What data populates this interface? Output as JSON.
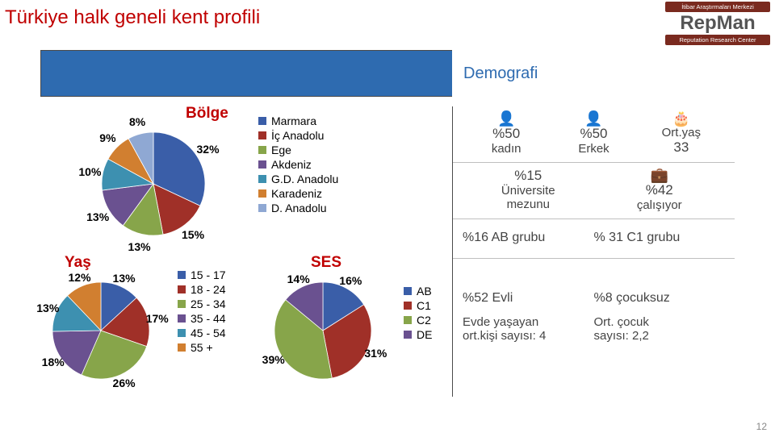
{
  "title": "Türkiye halk geneli kent profili",
  "logo": {
    "top": "İtibar Araştırmaları Merkezi",
    "mid": "RepMan",
    "bot": "Reputation Research Center"
  },
  "header_tab": "Demografi",
  "page_number": "12",
  "colors": {
    "title": "#c00000",
    "blue_bar": "#2e6bb0"
  },
  "bolge": {
    "title": "Bölge",
    "type": "pie",
    "slices": [
      {
        "label": "Marmara",
        "value": 32,
        "color": "#3a5ea8"
      },
      {
        "label": "İç Anadolu",
        "value": 15,
        "color": "#a03028"
      },
      {
        "label": "Ege",
        "value": 13,
        "color": "#87a54a"
      },
      {
        "label": "Akdeniz",
        "value": 13,
        "color": "#6a5190"
      },
      {
        "label": "G.D. Anadolu",
        "value": 10,
        "color": "#3d90b0"
      },
      {
        "label": "Karadeniz",
        "value": 9,
        "color": "#d17f30"
      },
      {
        "label": "D. Anadolu",
        "value": 8,
        "color": "#8fa8d3"
      }
    ]
  },
  "yas": {
    "title": "Yaş",
    "type": "pie",
    "slices": [
      {
        "label": "15 - 17",
        "value": 13,
        "color": "#3a5ea8"
      },
      {
        "label": "18 - 24",
        "value": 17,
        "color": "#a03028"
      },
      {
        "label": "25 - 34",
        "value": 26,
        "color": "#87a54a"
      },
      {
        "label": "35 - 44",
        "value": 18,
        "color": "#6a5190"
      },
      {
        "label": "45 - 54",
        "value": 13,
        "color": "#3d90b0"
      },
      {
        "label": "55 +",
        "value": 12,
        "color": "#d17f30"
      }
    ],
    "label_pct_order": [
      "13%",
      "17%",
      "26%",
      "18%",
      "13%",
      "12%"
    ]
  },
  "ses": {
    "title": "SES",
    "type": "pie",
    "slices": [
      {
        "label": "AB",
        "value": 16,
        "color": "#3a5ea8"
      },
      {
        "label": "C1",
        "value": 31,
        "color": "#a03028"
      },
      {
        "label": "C2",
        "value": 39,
        "color": "#87a54a"
      },
      {
        "label": "DE",
        "value": 14,
        "color": "#6a5190"
      }
    ]
  },
  "panel": {
    "row1": {
      "kadin_pct": "%50",
      "kadin_lbl": "kadın",
      "erkek_pct": "%50",
      "erkek_lbl": "Erkek",
      "ortayas_lbl": "Ort.yaş",
      "ortayas_val": "33"
    },
    "row2": {
      "uni_pct": "%15",
      "uni_line1": "Üniversite",
      "uni_line2": "mezunu",
      "calis_pct": "%42",
      "calis_lbl": "çalışıyor"
    },
    "row3": {
      "ab": "%16  AB grubu",
      "c1": "% 31  C1 grubu"
    },
    "row4": {
      "evli": "%52  Evli",
      "cocuksuz": "%8 çocuksuz",
      "evd1": "Evde yaşayan",
      "evd2": "ort.kişi sayısı: 4",
      "ortc1": "Ort. çocuk",
      "ortc2": "sayısı: 2,2"
    }
  }
}
